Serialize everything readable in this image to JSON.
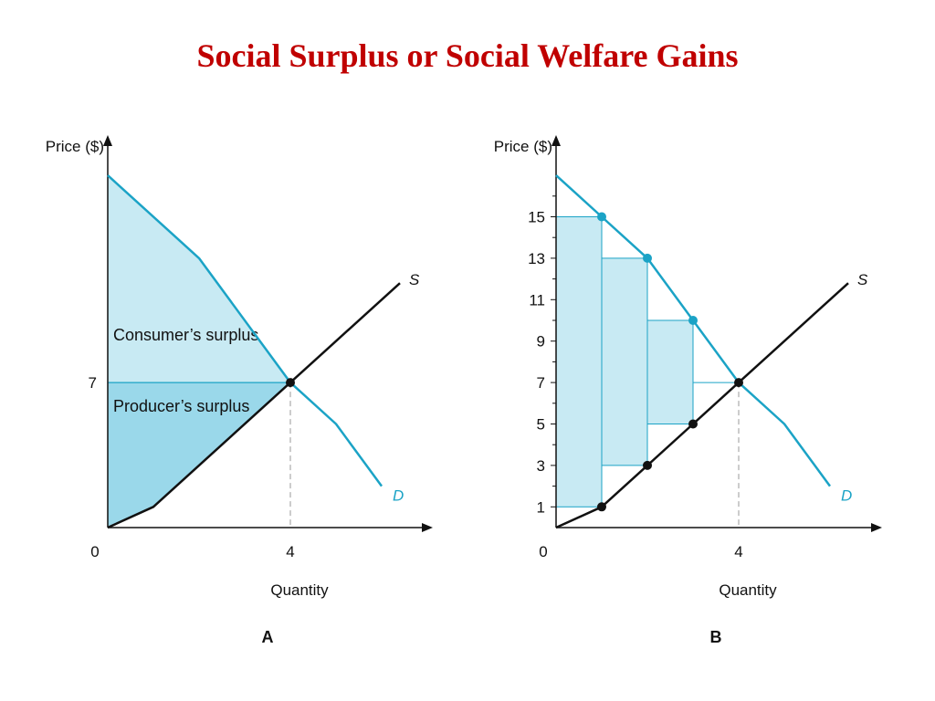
{
  "title": "Social Surplus or Social Welfare Gains",
  "colors": {
    "title": "#c00000",
    "demand": "#1ba3c6",
    "supply": "#111111",
    "cs_fill": "#c8eaf3",
    "ps_fill": "#9ad8ea",
    "bar_fill": "#c8eaf3"
  },
  "chart_data": [
    {
      "type": "area",
      "panel_label": "A",
      "xlabel": "Quantity",
      "ylabel": "Price ($)",
      "x_ticks": [
        "0",
        "4"
      ],
      "y_ticks": [
        "7"
      ],
      "xlim": [
        0,
        7
      ],
      "ylim": [
        0,
        17
      ],
      "demand": {
        "label": "D",
        "points": [
          [
            0,
            17
          ],
          [
            2,
            13
          ],
          [
            4,
            7
          ],
          [
            5,
            5
          ],
          [
            6,
            2
          ]
        ]
      },
      "supply": {
        "label": "S",
        "points": [
          [
            0,
            0
          ],
          [
            1,
            1
          ],
          [
            4,
            7
          ],
          [
            6.4,
            11.8
          ]
        ]
      },
      "equilibrium": {
        "quantity": 4,
        "price": 7
      },
      "regions": [
        {
          "name": "Consumer's surplus",
          "label": "Consumer’s surplus"
        },
        {
          "name": "Producer's surplus",
          "label": "Producer’s surplus"
        }
      ]
    },
    {
      "type": "bar",
      "panel_label": "B",
      "xlabel": "Quantity",
      "ylabel": "Price ($)",
      "x_ticks": [
        "0",
        "4"
      ],
      "y_ticks": [
        "1",
        "3",
        "5",
        "7",
        "9",
        "11",
        "13",
        "15"
      ],
      "xlim": [
        0,
        7
      ],
      "ylim": [
        0,
        17
      ],
      "demand": {
        "label": "D",
        "points": [
          [
            0,
            17
          ],
          [
            1,
            15
          ],
          [
            2,
            13
          ],
          [
            3,
            10
          ],
          [
            4,
            7
          ],
          [
            5,
            5
          ],
          [
            6,
            2
          ]
        ]
      },
      "supply": {
        "label": "S",
        "points": [
          [
            0,
            0
          ],
          [
            1,
            1
          ],
          [
            2,
            3
          ],
          [
            3,
            5
          ],
          [
            4,
            7
          ],
          [
            6.4,
            11.8
          ]
        ]
      },
      "equilibrium": {
        "quantity": 4,
        "price": 7
      },
      "bars": [
        {
          "x0": 0,
          "x1": 1,
          "low": 1,
          "high": 15
        },
        {
          "x0": 1,
          "x1": 2,
          "low": 3,
          "high": 13
        },
        {
          "x0": 2,
          "x1": 3,
          "low": 5,
          "high": 10
        },
        {
          "x0": 3,
          "x1": 4,
          "low": 7,
          "high": 7
        }
      ],
      "demand_dots": [
        [
          1,
          15
        ],
        [
          2,
          13
        ],
        [
          3,
          10
        ]
      ],
      "supply_dots": [
        [
          1,
          1
        ],
        [
          2,
          3
        ],
        [
          3,
          5
        ]
      ]
    }
  ]
}
